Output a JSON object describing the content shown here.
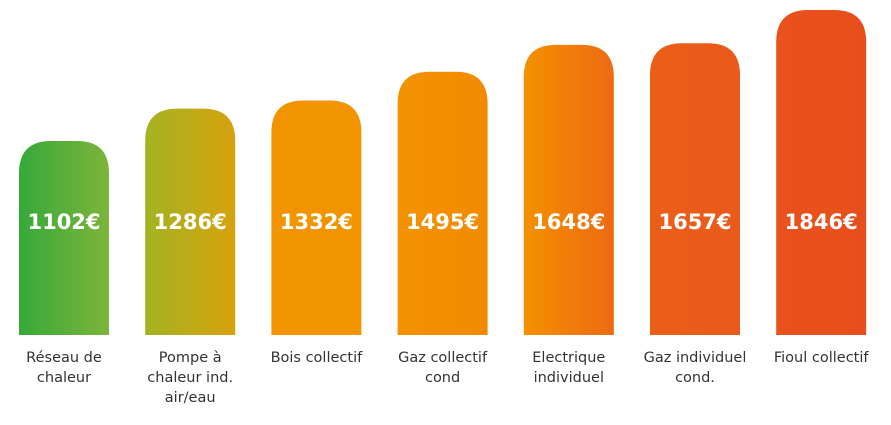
{
  "chart_data": {
    "type": "bar",
    "categories": [
      "Réseau de chaleur",
      "Pompe à chaleur ind. air/eau",
      "Bois collectif",
      "Gaz collectif cond",
      "Electrique individuel",
      "Gaz individuel cond.",
      "Fioul collectif"
    ],
    "values": [
      1102,
      1286,
      1332,
      1495,
      1648,
      1657,
      1846
    ],
    "value_labels": [
      "1102€",
      "1286€",
      "1332€",
      "1495€",
      "1648€",
      "1657€",
      "1846€"
    ],
    "colors": [
      [
        "#36a93a",
        "#7db43a"
      ],
      [
        "#a3b321",
        "#d7a10e"
      ],
      [
        "#f29400",
        "#f29400"
      ],
      [
        "#f39200",
        "#f28a00"
      ],
      [
        "#f39000",
        "#ee6a12"
      ],
      [
        "#eb5e18",
        "#ea5a1a"
      ],
      [
        "#e9521c",
        "#e84e1b"
      ]
    ]
  }
}
